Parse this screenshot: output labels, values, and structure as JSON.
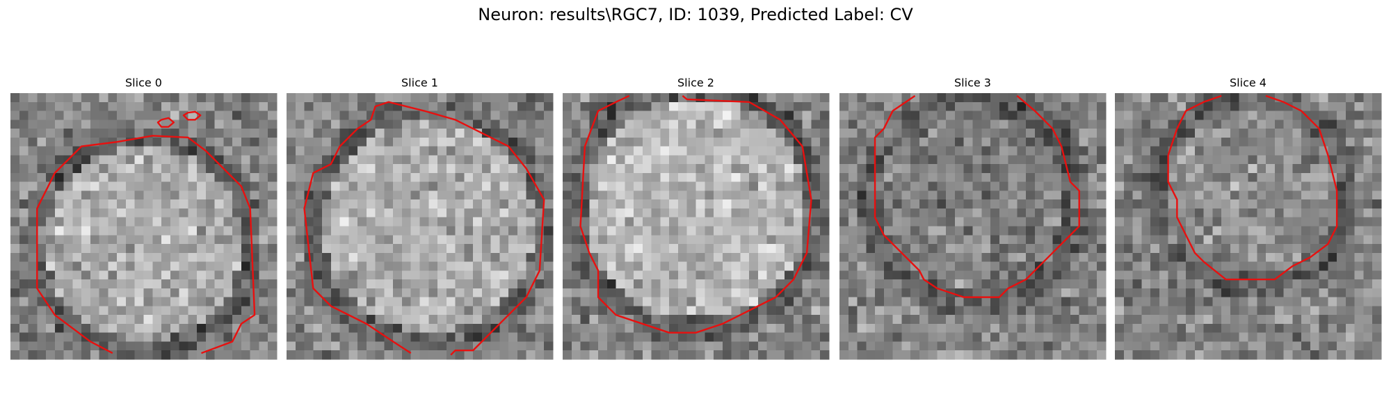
{
  "title": "Neuron: results\\RGC7, ID: 1039, Predicted Label: CV",
  "panels": [
    {
      "title": "Slice 0"
    },
    {
      "title": "Slice 1"
    },
    {
      "title": "Slice 2"
    },
    {
      "title": "Slice 3"
    },
    {
      "title": "Slice 4"
    }
  ]
}
